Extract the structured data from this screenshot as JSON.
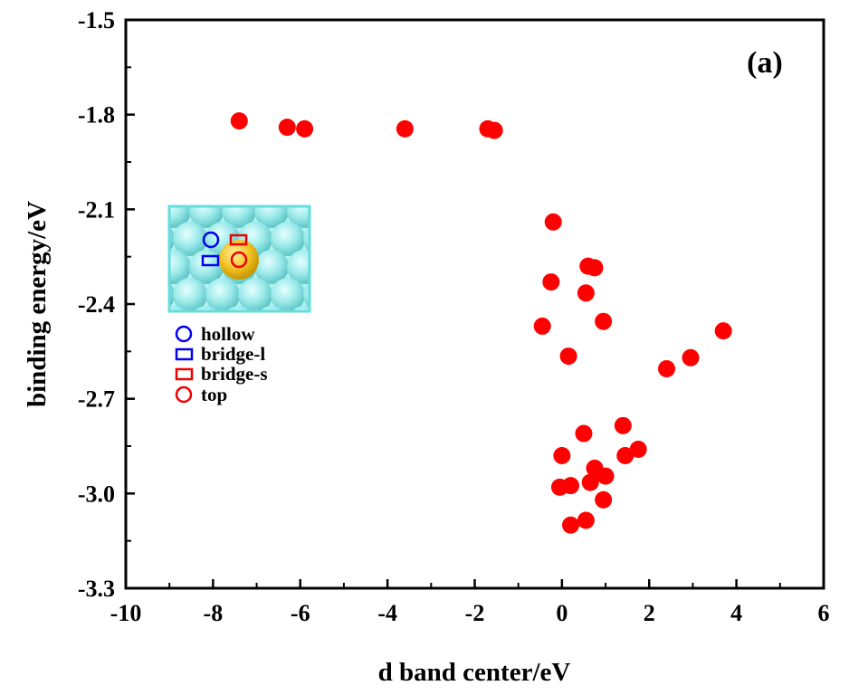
{
  "chart_data": {
    "type": "scatter",
    "panel_label": "(a)",
    "xlabel": "d band center/eV",
    "ylabel": "binding energy/eV",
    "xlim": [
      -10,
      6
    ],
    "ylim": [
      -3.3,
      -1.5
    ],
    "x_ticks": [
      -10,
      -8,
      -6,
      -4,
      -2,
      0,
      2,
      4,
      6
    ],
    "x_tick_labels": [
      "-10",
      "-8",
      "-6",
      "-4",
      "-2",
      "0",
      "2",
      "4",
      "6"
    ],
    "y_ticks": [
      -1.5,
      -1.8,
      -2.1,
      -2.4,
      -2.7,
      -3.0,
      -3.3
    ],
    "y_tick_labels": [
      "-1.5",
      "-1.8",
      "-2.1",
      "-2.4",
      "-2.7",
      "-3.0",
      "-3.3"
    ],
    "grid": false,
    "series": [
      {
        "color": "#ff0000",
        "marker": "filled-circle",
        "points": [
          {
            "x": -7.4,
            "y": -1.82
          },
          {
            "x": -6.3,
            "y": -1.84
          },
          {
            "x": -5.9,
            "y": -1.845
          },
          {
            "x": -3.6,
            "y": -1.845
          },
          {
            "x": -1.7,
            "y": -1.845
          },
          {
            "x": -1.55,
            "y": -1.85
          },
          {
            "x": -0.2,
            "y": -2.14
          },
          {
            "x": -0.25,
            "y": -2.33
          },
          {
            "x": 0.6,
            "y": -2.28
          },
          {
            "x": 0.75,
            "y": -2.285
          },
          {
            "x": 0.55,
            "y": -2.365
          },
          {
            "x": -0.45,
            "y": -2.47
          },
          {
            "x": 0.95,
            "y": -2.455
          },
          {
            "x": 0.15,
            "y": -2.565
          },
          {
            "x": 2.4,
            "y": -2.605
          },
          {
            "x": 2.95,
            "y": -2.57
          },
          {
            "x": 3.7,
            "y": -2.485
          },
          {
            "x": 1.4,
            "y": -2.785
          },
          {
            "x": 0.5,
            "y": -2.81
          },
          {
            "x": 0.0,
            "y": -2.88
          },
          {
            "x": 1.45,
            "y": -2.88
          },
          {
            "x": 1.75,
            "y": -2.86
          },
          {
            "x": 0.75,
            "y": -2.92
          },
          {
            "x": 1.0,
            "y": -2.945
          },
          {
            "x": 0.65,
            "y": -2.965
          },
          {
            "x": -0.05,
            "y": -2.98
          },
          {
            "x": 0.2,
            "y": -2.975
          },
          {
            "x": 0.95,
            "y": -3.02
          },
          {
            "x": 0.55,
            "y": -3.085
          },
          {
            "x": 0.2,
            "y": -3.1
          }
        ]
      }
    ],
    "legend": {
      "placement": "left",
      "items": [
        {
          "label": "hollow",
          "marker": "open-circle",
          "color": "#0000ee"
        },
        {
          "label": "bridge-l",
          "marker": "open-square",
          "color": "#0000ee"
        },
        {
          "label": "bridge-s",
          "marker": "open-square",
          "color": "#ee0000"
        },
        {
          "label": "top",
          "marker": "open-circle",
          "color": "#ee0000"
        }
      ]
    },
    "inset": {
      "image": "surface-atom-model",
      "surface_color": "#8ee6e6",
      "adatom_color": "#f0c020",
      "border_color": "#66dddd"
    }
  }
}
